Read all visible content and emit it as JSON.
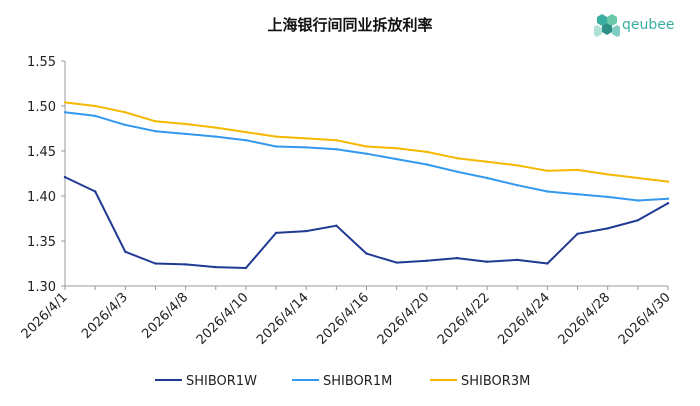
{
  "brand": {
    "name": "qeubee",
    "color": "#3aaea0"
  },
  "chart_data": {
    "type": "line",
    "title": "上海银行间同业拆放利率",
    "xlabel": "",
    "ylabel": "",
    "ylim": [
      1.3,
      1.55
    ],
    "yticks": [
      "1.30",
      "1.35",
      "1.40",
      "1.45",
      "1.50",
      "1.55"
    ],
    "grid": false,
    "legend_position": "bottom",
    "x": [
      "2026/4/1",
      "2026/4/2",
      "2026/4/3",
      "2026/4/7",
      "2026/4/8",
      "2026/4/9",
      "2026/4/10",
      "2026/4/13",
      "2026/4/14",
      "2026/4/15",
      "2026/4/16",
      "2026/4/17",
      "2026/4/20",
      "2026/4/21",
      "2026/4/22",
      "2026/4/23",
      "2026/4/24",
      "2026/4/27",
      "2026/4/28",
      "2026/4/29",
      "2026/4/30"
    ],
    "tick_labels": [
      "2026/4/1",
      "2026/4/3",
      "2026/4/8",
      "2026/4/10",
      "2026/4/14",
      "2026/4/16",
      "2026/4/20",
      "2026/4/22",
      "2026/4/24",
      "2026/4/28",
      "2026/4/30"
    ],
    "series": [
      {
        "name": "SHIBOR1W",
        "color": "#1f3a93",
        "values": [
          1.421,
          1.405,
          1.338,
          1.325,
          1.324,
          1.321,
          1.32,
          1.359,
          1.361,
          1.367,
          1.336,
          1.326,
          1.328,
          1.331,
          1.327,
          1.329,
          1.325,
          1.358,
          1.364,
          1.373,
          1.392
        ]
      },
      {
        "name": "SHIBOR1M",
        "color": "#3399ee",
        "values": [
          1.493,
          1.489,
          1.479,
          1.472,
          1.469,
          1.466,
          1.462,
          1.455,
          1.454,
          1.452,
          1.447,
          1.441,
          1.435,
          1.427,
          1.42,
          1.412,
          1.405,
          1.402,
          1.399,
          1.395,
          1.397
        ]
      },
      {
        "name": "SHIBOR3M",
        "color": "#f5b800",
        "values": [
          1.504,
          1.5,
          1.493,
          1.483,
          1.48,
          1.476,
          1.471,
          1.466,
          1.464,
          1.462,
          1.455,
          1.453,
          1.449,
          1.442,
          1.438,
          1.434,
          1.428,
          1.429,
          1.424,
          1.42,
          1.416
        ]
      }
    ]
  }
}
